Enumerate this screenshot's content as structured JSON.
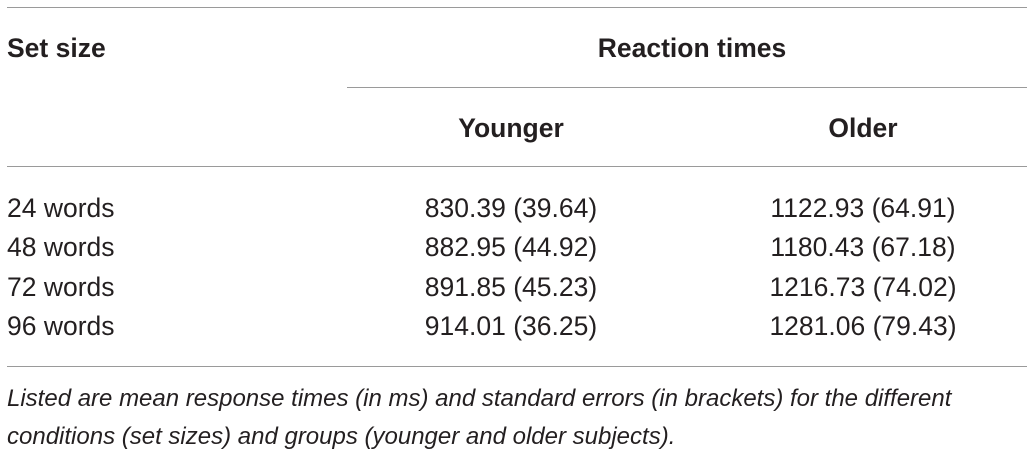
{
  "table": {
    "header": {
      "set_size": "Set size",
      "reaction_times": "Reaction times",
      "younger": "Younger",
      "older": "Older"
    },
    "rows": [
      {
        "set_size": "24 words",
        "younger": "830.39 (39.64)",
        "older": "1122.93 (64.91)"
      },
      {
        "set_size": "48 words",
        "younger": "882.95 (44.92)",
        "older": "1180.43 (67.18)"
      },
      {
        "set_size": "72 words",
        "younger": "891.85 (45.23)",
        "older": "1216.73 (74.02)"
      },
      {
        "set_size": "96 words",
        "younger": "914.01 (36.25)",
        "older": "1281.06 (79.43)"
      }
    ],
    "footnote": "Listed are mean response times (in ms) and standard errors (in brackets) for the different conditions (set sizes) and groups (younger and older subjects)."
  }
}
